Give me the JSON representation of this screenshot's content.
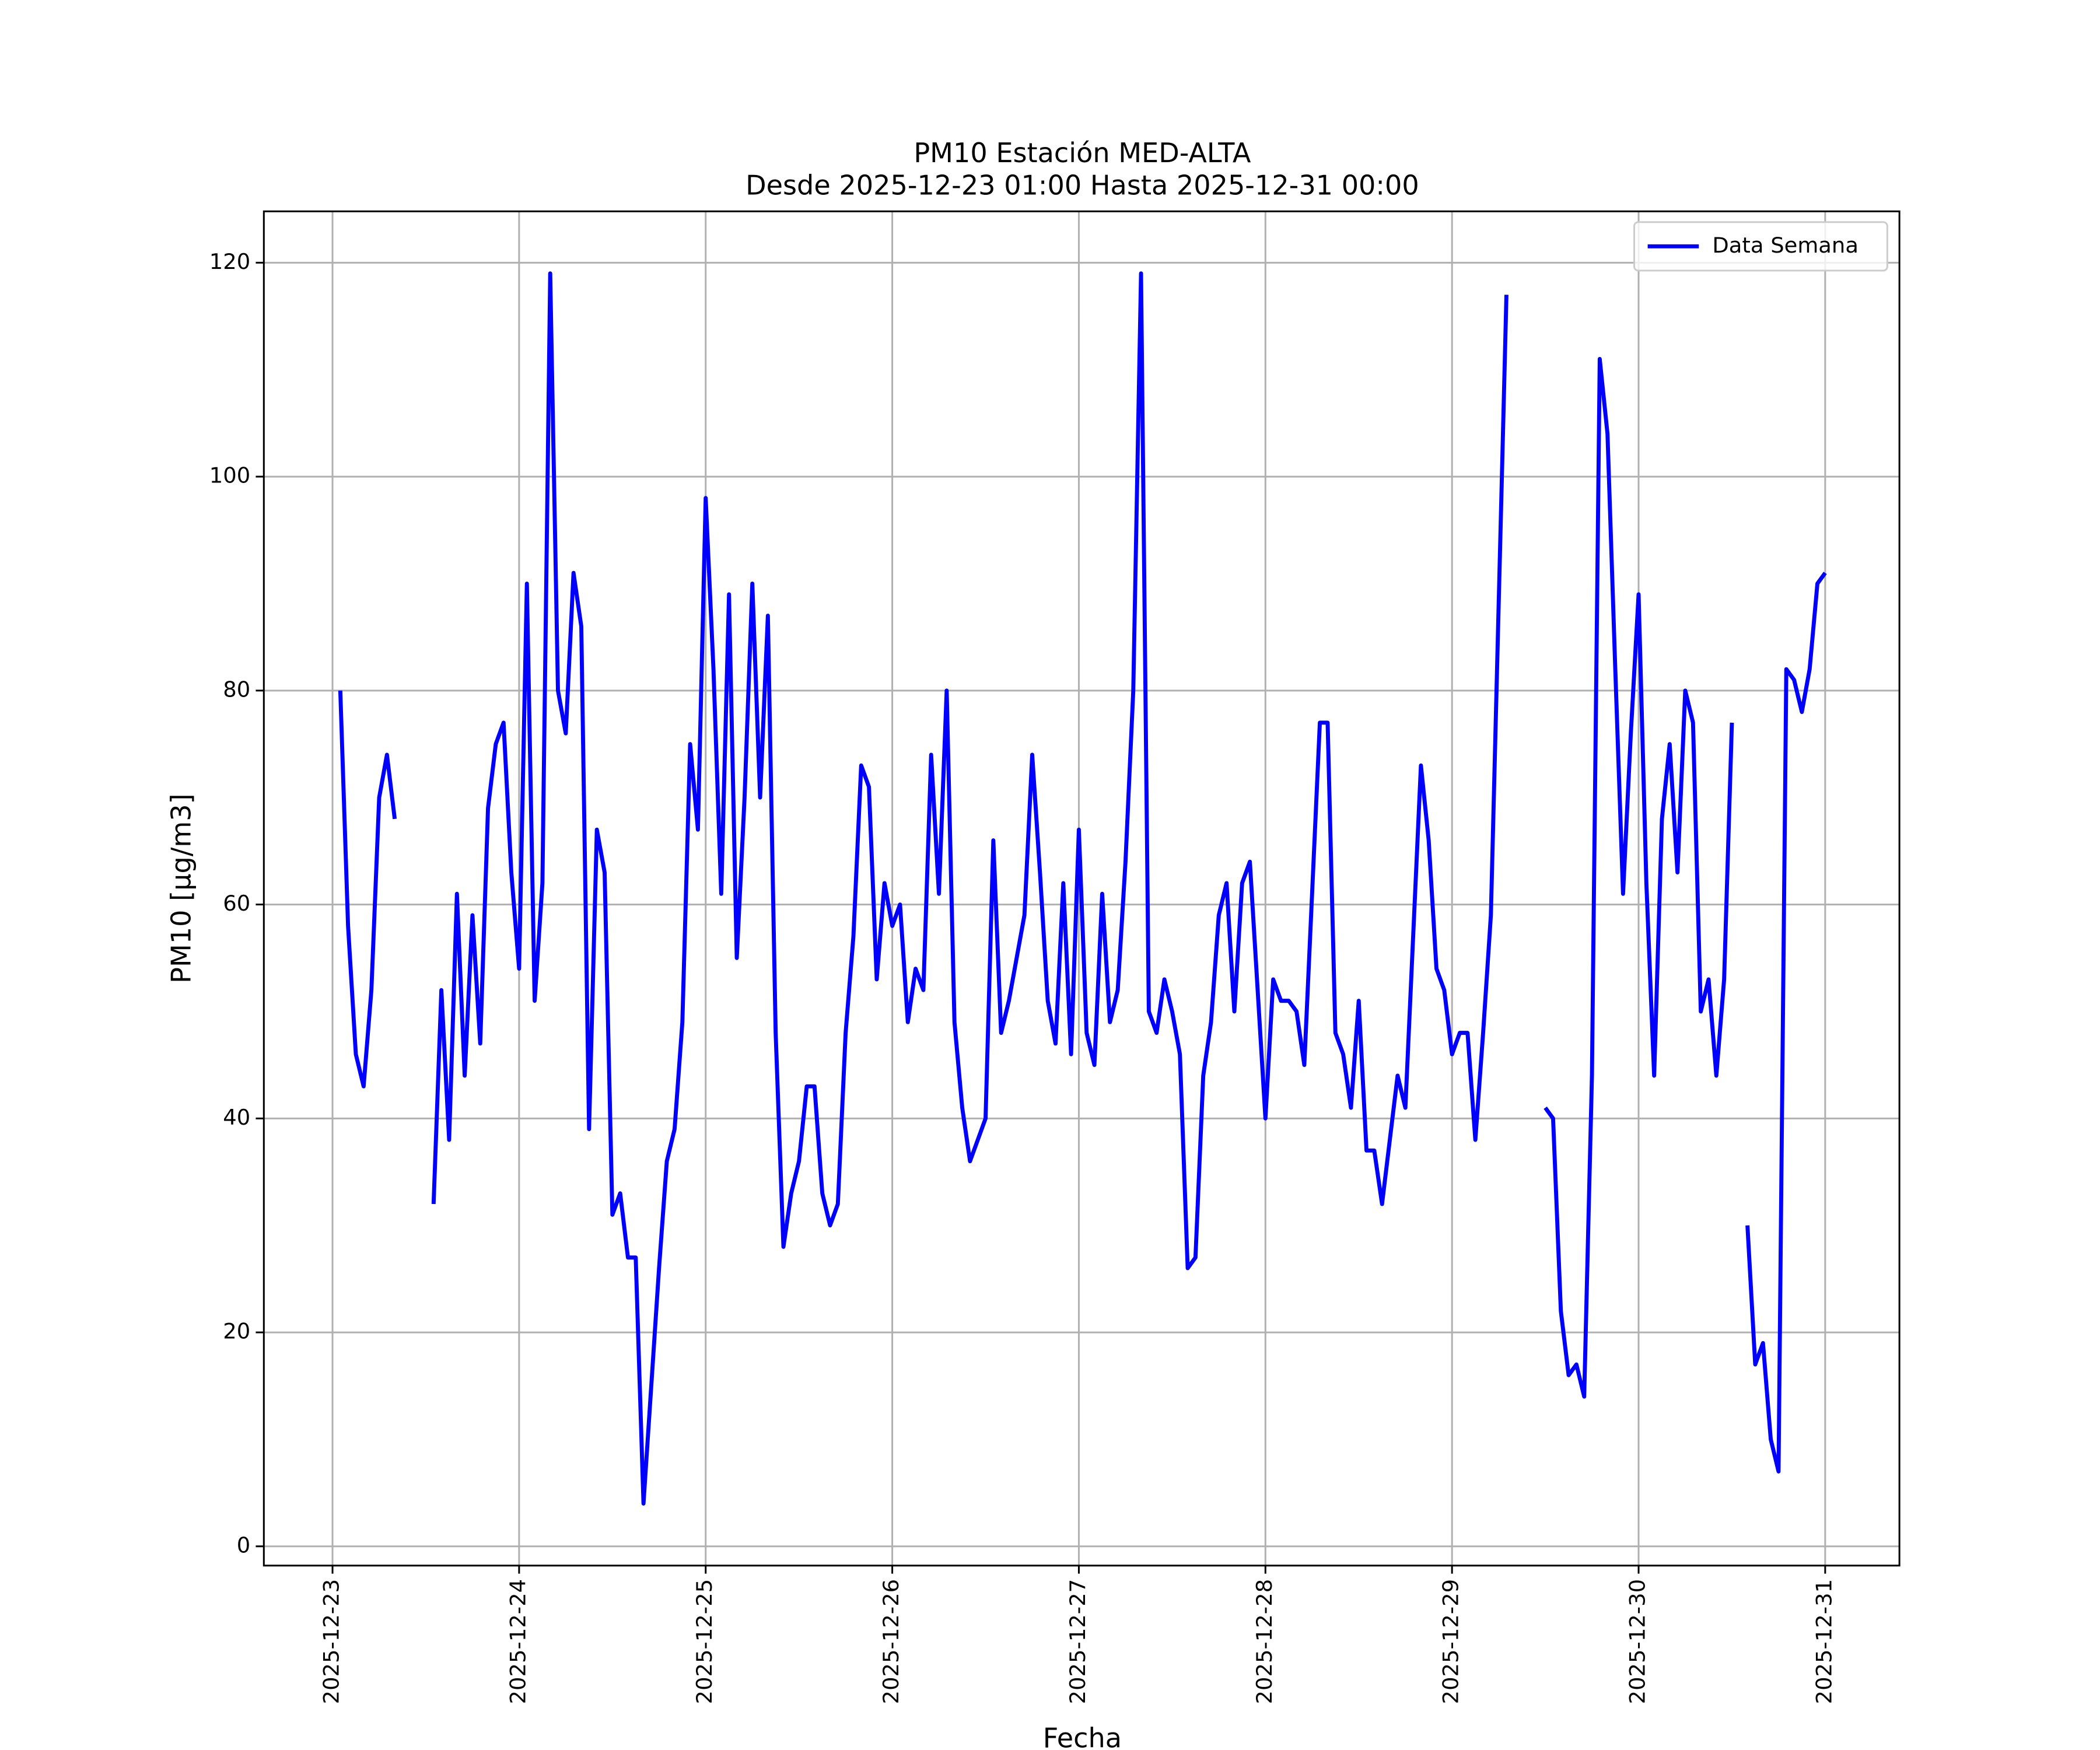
{
  "chart_data": {
    "type": "line",
    "title": "PM10 Estación MED-ALTA",
    "subtitle": "Desde 2025-12-23 01:00 Hasta 2025-12-31 00:00",
    "xlabel": "Fecha",
    "ylabel": "PM10 [μg/m3]",
    "x": [
      "2025-12-23 01:00",
      "2025-12-23 02:00",
      "2025-12-23 03:00",
      "2025-12-23 04:00",
      "2025-12-23 05:00",
      "2025-12-23 06:00",
      "2025-12-23 07:00",
      "2025-12-23 08:00",
      "2025-12-23 09:00",
      "2025-12-23 10:00",
      "2025-12-23 11:00",
      "2025-12-23 12:00",
      "2025-12-23 13:00",
      "2025-12-23 14:00",
      "2025-12-23 15:00",
      "2025-12-23 16:00",
      "2025-12-23 17:00",
      "2025-12-23 18:00",
      "2025-12-23 19:00",
      "2025-12-23 20:00",
      "2025-12-23 21:00",
      "2025-12-23 22:00",
      "2025-12-23 23:00",
      "2025-12-24 00:00",
      "2025-12-24 01:00",
      "2025-12-24 02:00",
      "2025-12-24 03:00",
      "2025-12-24 04:00",
      "2025-12-24 05:00",
      "2025-12-24 06:00",
      "2025-12-24 07:00",
      "2025-12-24 08:00",
      "2025-12-24 09:00",
      "2025-12-24 10:00",
      "2025-12-24 11:00",
      "2025-12-24 12:00",
      "2025-12-24 13:00",
      "2025-12-24 14:00",
      "2025-12-24 15:00",
      "2025-12-24 16:00",
      "2025-12-24 17:00",
      "2025-12-24 18:00",
      "2025-12-24 19:00",
      "2025-12-24 20:00",
      "2025-12-24 21:00",
      "2025-12-24 22:00",
      "2025-12-24 23:00",
      "2025-12-25 00:00",
      "2025-12-25 01:00",
      "2025-12-25 02:00",
      "2025-12-25 03:00",
      "2025-12-25 04:00",
      "2025-12-25 05:00",
      "2025-12-25 06:00",
      "2025-12-25 07:00",
      "2025-12-25 08:00",
      "2025-12-25 09:00",
      "2025-12-25 10:00",
      "2025-12-25 11:00",
      "2025-12-25 12:00",
      "2025-12-25 13:00",
      "2025-12-25 14:00",
      "2025-12-25 15:00",
      "2025-12-25 16:00",
      "2025-12-25 17:00",
      "2025-12-25 18:00",
      "2025-12-25 19:00",
      "2025-12-25 20:00",
      "2025-12-25 21:00",
      "2025-12-25 22:00",
      "2025-12-25 23:00",
      "2025-12-26 00:00",
      "2025-12-26 01:00",
      "2025-12-26 02:00",
      "2025-12-26 03:00",
      "2025-12-26 04:00",
      "2025-12-26 05:00",
      "2025-12-26 06:00",
      "2025-12-26 07:00",
      "2025-12-26 08:00",
      "2025-12-26 09:00",
      "2025-12-26 10:00",
      "2025-12-26 11:00",
      "2025-12-26 12:00",
      "2025-12-26 13:00",
      "2025-12-26 14:00",
      "2025-12-26 15:00",
      "2025-12-26 16:00",
      "2025-12-26 17:00",
      "2025-12-26 18:00",
      "2025-12-26 19:00",
      "2025-12-26 20:00",
      "2025-12-26 21:00",
      "2025-12-26 22:00",
      "2025-12-26 23:00",
      "2025-12-27 00:00",
      "2025-12-27 01:00",
      "2025-12-27 02:00",
      "2025-12-27 03:00",
      "2025-12-27 04:00",
      "2025-12-27 05:00",
      "2025-12-27 06:00",
      "2025-12-27 07:00",
      "2025-12-27 08:00",
      "2025-12-27 09:00",
      "2025-12-27 10:00",
      "2025-12-27 11:00",
      "2025-12-27 12:00",
      "2025-12-27 13:00",
      "2025-12-27 14:00",
      "2025-12-27 15:00",
      "2025-12-27 16:00",
      "2025-12-27 17:00",
      "2025-12-27 18:00",
      "2025-12-27 19:00",
      "2025-12-27 20:00",
      "2025-12-27 21:00",
      "2025-12-27 22:00",
      "2025-12-27 23:00",
      "2025-12-28 00:00",
      "2025-12-28 01:00",
      "2025-12-28 02:00",
      "2025-12-28 03:00",
      "2025-12-28 04:00",
      "2025-12-28 05:00",
      "2025-12-28 06:00",
      "2025-12-28 07:00",
      "2025-12-28 08:00",
      "2025-12-28 09:00",
      "2025-12-28 10:00",
      "2025-12-28 11:00",
      "2025-12-28 12:00",
      "2025-12-28 13:00",
      "2025-12-28 14:00",
      "2025-12-28 15:00",
      "2025-12-28 16:00",
      "2025-12-28 17:00",
      "2025-12-28 18:00",
      "2025-12-28 19:00",
      "2025-12-28 20:00",
      "2025-12-28 21:00",
      "2025-12-28 22:00",
      "2025-12-28 23:00",
      "2025-12-29 00:00",
      "2025-12-29 01:00",
      "2025-12-29 02:00",
      "2025-12-29 03:00",
      "2025-12-29 04:00",
      "2025-12-29 05:00",
      "2025-12-29 06:00",
      "2025-12-29 07:00",
      "2025-12-29 08:00",
      "2025-12-29 09:00",
      "2025-12-29 10:00",
      "2025-12-29 11:00",
      "2025-12-29 12:00",
      "2025-12-29 13:00",
      "2025-12-29 14:00",
      "2025-12-29 15:00",
      "2025-12-29 16:00",
      "2025-12-29 17:00",
      "2025-12-29 18:00",
      "2025-12-29 19:00",
      "2025-12-29 20:00",
      "2025-12-29 21:00",
      "2025-12-29 22:00",
      "2025-12-29 23:00",
      "2025-12-30 00:00",
      "2025-12-30 01:00",
      "2025-12-30 02:00",
      "2025-12-30 03:00",
      "2025-12-30 04:00",
      "2025-12-30 05:00",
      "2025-12-30 06:00",
      "2025-12-30 07:00",
      "2025-12-30 08:00",
      "2025-12-30 09:00",
      "2025-12-30 10:00",
      "2025-12-30 11:00",
      "2025-12-30 12:00",
      "2025-12-30 13:00",
      "2025-12-30 14:00",
      "2025-12-30 15:00",
      "2025-12-30 16:00",
      "2025-12-30 17:00",
      "2025-12-30 18:00",
      "2025-12-30 19:00",
      "2025-12-30 20:00",
      "2025-12-30 21:00",
      "2025-12-30 22:00",
      "2025-12-30 23:00",
      "2025-12-31 00:00"
    ],
    "series": [
      {
        "name": "Data Semana",
        "color": "#0000ff",
        "values": [
          80,
          58,
          46,
          43,
          52,
          70,
          74,
          68,
          null,
          null,
          null,
          null,
          32,
          52,
          38,
          61,
          44,
          59,
          47,
          69,
          75,
          77,
          63,
          54,
          90,
          51,
          62,
          119,
          80,
          76,
          91,
          86,
          39,
          67,
          63,
          31,
          33,
          27,
          27,
          4,
          15,
          26,
          36,
          39,
          49,
          75,
          67,
          98,
          82,
          61,
          89,
          55,
          70,
          90,
          70,
          87,
          48,
          28,
          33,
          36,
          43,
          43,
          33,
          30,
          32,
          48,
          57,
          73,
          71,
          53,
          62,
          58,
          60,
          49,
          54,
          52,
          74,
          61,
          80,
          49,
          41,
          36,
          38,
          40,
          66,
          48,
          51,
          55,
          59,
          74,
          63,
          51,
          47,
          62,
          46,
          67,
          48,
          45,
          61,
          49,
          52,
          64,
          80,
          119,
          50,
          48,
          53,
          50,
          46,
          26,
          27,
          44,
          49,
          59,
          62,
          50,
          62,
          64,
          52,
          40,
          53,
          51,
          51,
          50,
          45,
          61,
          77,
          77,
          48,
          46,
          41,
          51,
          37,
          37,
          32,
          38,
          44,
          41,
          57,
          73,
          66,
          54,
          52,
          46,
          48,
          48,
          38,
          48,
          59,
          88,
          117,
          null,
          null,
          null,
          null,
          41,
          40,
          22,
          16,
          17,
          14,
          44,
          111,
          104,
          82,
          61,
          76,
          89,
          62,
          44,
          68,
          75,
          63,
          80,
          77,
          50,
          53,
          44,
          53,
          77,
          null,
          30,
          17,
          19,
          10,
          7,
          82,
          81,
          78,
          82,
          90,
          91
        ]
      }
    ],
    "xlim": [
      "2025-12-22 15:10",
      "2025-12-31 09:33"
    ],
    "xticks": [
      "2025-12-23",
      "2025-12-24",
      "2025-12-25",
      "2025-12-26",
      "2025-12-27",
      "2025-12-28",
      "2025-12-29",
      "2025-12-30",
      "2025-12-31"
    ],
    "ylim": [
      -1.8,
      124.8
    ],
    "yticks": [
      0,
      20,
      40,
      60,
      80,
      100,
      120
    ],
    "grid": true,
    "legend": "upper right"
  }
}
